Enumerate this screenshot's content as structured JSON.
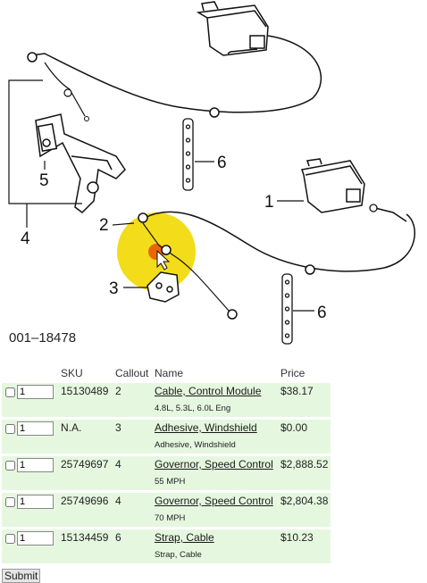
{
  "diagram": {
    "part_number": "001–18478",
    "callouts": [
      "1",
      "2",
      "3",
      "4",
      "5",
      "6",
      "6"
    ]
  },
  "table": {
    "headers": {
      "sku": "SKU",
      "callout": "Callout",
      "name": "Name",
      "price": "Price"
    },
    "rows": [
      {
        "qty": "1",
        "sku": "15130489",
        "callout": "2",
        "name": "Cable, Control Module",
        "desc": "4.8L, 5.3L, 6.0L Eng",
        "price": "$38.17"
      },
      {
        "qty": "1",
        "sku": "N.A.",
        "callout": "3",
        "name": "Adhesive, Windshield",
        "desc": "Adhesive, Windshield",
        "price": "$0.00"
      },
      {
        "qty": "1",
        "sku": "25749697",
        "callout": "4",
        "name": "Governor, Speed Control",
        "desc": "55 MPH",
        "price": "$2,888.52"
      },
      {
        "qty": "1",
        "sku": "25749696",
        "callout": "4",
        "name": "Governor, Speed Control",
        "desc": "70 MPH",
        "price": "$2,804.38"
      },
      {
        "qty": "1",
        "sku": "15134459",
        "callout": "6",
        "name": "Strap, Cable",
        "desc": "Strap, Cable",
        "price": "$10.23"
      }
    ]
  },
  "submit_label": "Submit",
  "colors": {
    "row_alt": "#e6f7e0",
    "highlight": "#f2d800"
  }
}
